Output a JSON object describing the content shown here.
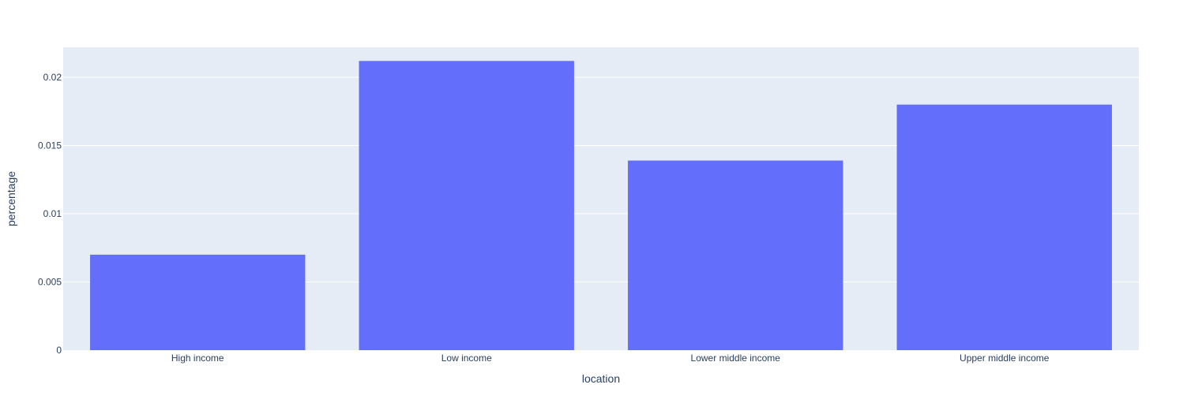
{
  "chart_data": {
    "type": "bar",
    "categories": [
      "High income",
      "Low income",
      "Lower middle income",
      "Upper middle income"
    ],
    "values": [
      0.007,
      0.0212,
      0.0139,
      0.018
    ],
    "title": "",
    "xlabel": "location",
    "ylabel": "percentage",
    "ylim": [
      0,
      0.0222
    ],
    "yticks": [
      0,
      0.005,
      0.01,
      0.015,
      0.02
    ],
    "ytick_labels": [
      "0",
      "0.005",
      "0.01",
      "0.015",
      "0.02"
    ],
    "grid": true,
    "legend": "none",
    "colors": {
      "bar": "#636efa",
      "plot_background": "#e5ecf6",
      "gridline": "#ffffff",
      "text": "#2a3f5f"
    }
  }
}
